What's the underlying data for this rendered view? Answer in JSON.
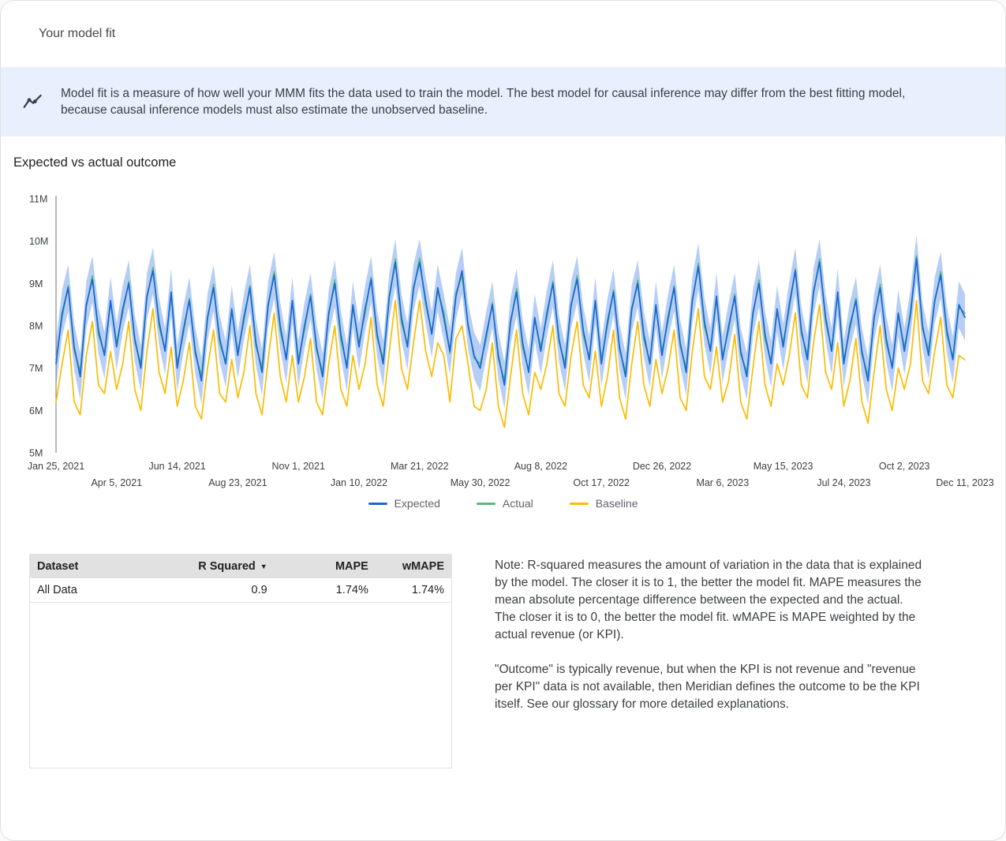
{
  "header": {
    "title": "Your model fit"
  },
  "banner": {
    "text": "Model fit is a measure of how well your MMM fits the data used to train the model. The best model for causal inference may differ from the best fitting model, because causal inference models must also estimate the unobserved baseline."
  },
  "chart_section": {
    "title": "Expected vs actual outcome"
  },
  "icons": {
    "sort_desc": "▼",
    "banner_icon": "trend-line-with-points"
  },
  "chart_data": {
    "type": "line",
    "title": "Expected vs actual outcome",
    "unit": "M",
    "frequency": "weekly",
    "x_start": "Jan 25, 2021",
    "x_end": "Dec 11, 2023",
    "n_points": 151,
    "ylim": [
      5,
      11
    ],
    "grid": false,
    "legend_position": "bottom",
    "yticks": [
      {
        "value": 11,
        "label": "11M"
      },
      {
        "value": 10,
        "label": "10M"
      },
      {
        "value": 9,
        "label": "9M"
      },
      {
        "value": 8,
        "label": "8M"
      },
      {
        "value": 7,
        "label": "7M"
      },
      {
        "value": 6,
        "label": "6M"
      },
      {
        "value": 5,
        "label": "5M"
      }
    ],
    "xticks": [
      {
        "label": "Jan 25, 2021",
        "week": 0
      },
      {
        "label": "Apr 5, 2021",
        "week": 10
      },
      {
        "label": "Jun 14, 2021",
        "week": 20
      },
      {
        "label": "Aug 23, 2021",
        "week": 30
      },
      {
        "label": "Nov 1, 2021",
        "week": 40
      },
      {
        "label": "Jan 10, 2022",
        "week": 50
      },
      {
        "label": "Mar 21, 2022",
        "week": 60
      },
      {
        "label": "May 30, 2022",
        "week": 70
      },
      {
        "label": "Aug 8, 2022",
        "week": 80
      },
      {
        "label": "Oct 17, 2022",
        "week": 90
      },
      {
        "label": "Dec 26, 2022",
        "week": 100
      },
      {
        "label": "Mar 6, 2023",
        "week": 110
      },
      {
        "label": "May 15, 2023",
        "week": 120
      },
      {
        "label": "Jul 24, 2023",
        "week": 130
      },
      {
        "label": "Oct 2, 2023",
        "week": 140
      },
      {
        "label": "Dec 11, 2023",
        "week": 150
      }
    ],
    "ci_band": {
      "around": "Expected",
      "halfwidth": 0.55,
      "color": "#a9c6f5",
      "opacity": 0.85
    },
    "series": [
      {
        "name": "Expected",
        "color": "#1967d2",
        "values": [
          7.1,
          8.3,
          8.9,
          7.5,
          6.8,
          8.5,
          9.1,
          7.9,
          7.3,
          8.6,
          7.5,
          8.4,
          9.0,
          7.7,
          7.0,
          8.7,
          9.3,
          8.1,
          7.4,
          8.8,
          7.0,
          7.9,
          8.6,
          7.4,
          6.7,
          8.2,
          8.9,
          7.7,
          7.1,
          8.4,
          7.3,
          8.2,
          8.9,
          7.6,
          6.9,
          8.5,
          9.2,
          8.0,
          7.2,
          8.6,
          7.1,
          8.0,
          8.7,
          7.5,
          6.8,
          8.3,
          9.0,
          7.8,
          7.0,
          8.5,
          7.5,
          8.4,
          9.1,
          7.8,
          7.1,
          8.7,
          9.5,
          8.2,
          7.5,
          8.9,
          9.5,
          8.6,
          7.8,
          8.9,
          8.2,
          7.4,
          8.7,
          9.3,
          8.0,
          7.3,
          7.0,
          7.8,
          8.5,
          7.3,
          6.6,
          8.1,
          8.8,
          7.6,
          6.9,
          8.2,
          7.4,
          8.3,
          9.0,
          7.7,
          7.0,
          8.5,
          9.1,
          7.9,
          7.2,
          8.6,
          7.1,
          8.1,
          8.8,
          7.5,
          6.8,
          8.4,
          9.0,
          7.8,
          7.1,
          8.5,
          7.3,
          8.2,
          8.9,
          7.6,
          6.9,
          8.6,
          9.4,
          8.1,
          7.4,
          8.7,
          7.2,
          8.0,
          8.7,
          7.4,
          6.8,
          8.3,
          9.0,
          7.8,
          7.1,
          8.4,
          7.5,
          8.5,
          9.3,
          7.9,
          7.2,
          8.8,
          9.5,
          8.2,
          7.4,
          8.8,
          7.1,
          8.0,
          8.6,
          7.4,
          6.7,
          8.2,
          8.9,
          7.7,
          7.0,
          8.3,
          7.4,
          8.3,
          9.6,
          8.0,
          7.3,
          8.6,
          9.2,
          7.9,
          7.2,
          8.5,
          8.2
        ]
      },
      {
        "name": "Actual",
        "color": "#5bb974",
        "values": [
          7.2,
          8.2,
          8.95,
          7.42,
          6.92,
          8.45,
          9.18,
          7.78,
          7.36,
          8.54,
          7.6,
          8.3,
          9.05,
          7.62,
          7.12,
          8.65,
          9.38,
          7.98,
          7.46,
          8.74,
          7.1,
          7.8,
          8.65,
          7.32,
          6.82,
          8.15,
          8.98,
          7.58,
          7.16,
          8.34,
          7.4,
          8.1,
          8.95,
          7.52,
          7.02,
          8.45,
          9.28,
          7.88,
          7.26,
          8.54,
          7.2,
          7.9,
          8.75,
          7.42,
          6.92,
          8.25,
          9.08,
          7.68,
          7.06,
          8.44,
          7.6,
          8.3,
          9.15,
          7.72,
          7.22,
          8.65,
          9.58,
          8.08,
          7.56,
          8.84,
          9.6,
          8.5,
          7.85,
          8.82,
          8.32,
          7.35,
          8.78,
          9.18,
          8.06,
          7.24,
          7.1,
          7.7,
          8.55,
          7.22,
          6.72,
          8.05,
          8.88,
          7.48,
          6.96,
          8.14,
          7.5,
          8.2,
          9.05,
          7.62,
          7.12,
          8.45,
          9.18,
          7.78,
          7.26,
          8.54,
          7.2,
          8.0,
          8.85,
          7.42,
          6.92,
          8.35,
          9.08,
          7.68,
          7.16,
          8.44,
          7.4,
          8.1,
          8.95,
          7.52,
          7.02,
          8.55,
          9.48,
          7.98,
          7.46,
          8.64,
          7.3,
          7.9,
          8.75,
          7.32,
          6.92,
          8.25,
          9.08,
          7.68,
          7.16,
          8.34,
          7.6,
          8.4,
          9.35,
          7.82,
          7.32,
          8.75,
          9.58,
          8.08,
          7.46,
          8.74,
          7.2,
          7.9,
          8.65,
          7.32,
          6.82,
          8.15,
          8.98,
          7.58,
          7.06,
          8.24,
          7.5,
          8.2,
          9.65,
          7.92,
          7.42,
          8.55,
          9.28,
          7.78,
          7.26,
          8.44,
          8.3
        ]
      },
      {
        "name": "Baseline",
        "color": "#fbbc04",
        "values": [
          6.2,
          7.1,
          7.9,
          6.2,
          5.9,
          7.3,
          8.1,
          6.6,
          6.4,
          7.4,
          6.5,
          7.1,
          8.1,
          6.5,
          6.0,
          7.4,
          8.4,
          6.9,
          6.4,
          7.5,
          6.1,
          6.7,
          7.6,
          6.1,
          5.8,
          7.0,
          7.9,
          6.4,
          6.2,
          7.2,
          6.3,
          6.9,
          8.0,
          6.4,
          5.9,
          7.2,
          8.3,
          6.8,
          6.2,
          7.3,
          6.2,
          6.8,
          7.7,
          6.2,
          5.9,
          7.1,
          8.0,
          6.5,
          6.1,
          7.3,
          6.5,
          7.1,
          8.2,
          6.6,
          6.1,
          7.4,
          8.6,
          7.0,
          6.5,
          7.6,
          8.6,
          7.4,
          6.8,
          7.6,
          7.3,
          6.2,
          7.7,
          8.0,
          7.1,
          6.1,
          6.0,
          6.5,
          7.6,
          6.1,
          5.6,
          6.8,
          7.9,
          6.4,
          5.9,
          6.9,
          6.5,
          7.1,
          8.0,
          6.4,
          6.1,
          7.3,
          8.1,
          6.6,
          6.3,
          7.4,
          6.1,
          6.8,
          7.9,
          6.3,
          5.8,
          7.1,
          8.1,
          6.6,
          6.1,
          7.2,
          6.4,
          7.0,
          7.9,
          6.3,
          6.0,
          7.4,
          8.4,
          6.8,
          6.5,
          7.5,
          6.2,
          6.7,
          7.8,
          6.2,
          5.8,
          7.0,
          8.1,
          6.6,
          6.1,
          7.1,
          6.6,
          7.3,
          8.3,
          6.6,
          6.3,
          7.6,
          8.5,
          6.9,
          6.5,
          7.6,
          6.1,
          6.7,
          7.7,
          6.2,
          5.7,
          6.9,
          8.0,
          6.5,
          6.0,
          7.0,
          6.5,
          7.1,
          8.6,
          6.7,
          6.4,
          7.4,
          8.2,
          6.6,
          6.3,
          7.3,
          7.2
        ]
      }
    ]
  },
  "table": {
    "headers": [
      "Dataset",
      "R Squared",
      "MAPE",
      "wMAPE"
    ],
    "sort": {
      "column": "R Squared",
      "direction": "desc"
    },
    "rows": [
      [
        "All Data",
        "0.9",
        "1.74%",
        "1.74%"
      ]
    ]
  },
  "notes": {
    "p1": "Note: R-squared measures the amount of variation in the data that is explained by the model. The closer it is to 1, the better the model fit. MAPE measures the mean absolute percentage difference between the expected and the actual. The closer it is to 0, the better the model fit. wMAPE is MAPE weighted by the actual revenue (or KPI).",
    "p2": "\"Outcome\" is typically revenue, but when the KPI is not revenue and \"revenue per KPI\" data is not available, then Meridian defines the outcome to be the KPI itself. See our glossary for more detailed explanations."
  }
}
